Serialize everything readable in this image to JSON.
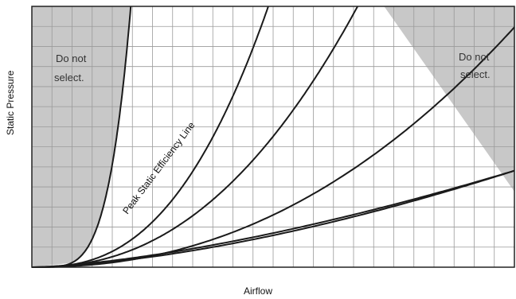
{
  "chart_data": {
    "type": "line",
    "xlabel": "Airflow",
    "ylabel": "Static Pressure",
    "grid": true,
    "xlim": [
      0,
      1
    ],
    "ylim": [
      0,
      1
    ],
    "shaded_regions": [
      {
        "label_lines": [
          "Do not",
          "select."
        ],
        "color": "#c8c8c8",
        "side": "left"
      },
      {
        "label_lines": [
          "Do not",
          "select."
        ],
        "color": "#c8c8c8",
        "side": "right"
      }
    ],
    "annotation": "Peak Static Efficiency Line",
    "series": [
      {
        "k": 1.0,
        "exp": 4.5
      },
      {
        "k": 0.55,
        "exp": 2.6
      },
      {
        "k": 0.68,
        "exp": 2.3
      },
      {
        "k": 1.4,
        "exp": 2.4
      },
      {
        "k": 1.0,
        "exp": 1.6
      },
      {
        "k": 0.37,
        "exp": 1.5
      }
    ]
  }
}
